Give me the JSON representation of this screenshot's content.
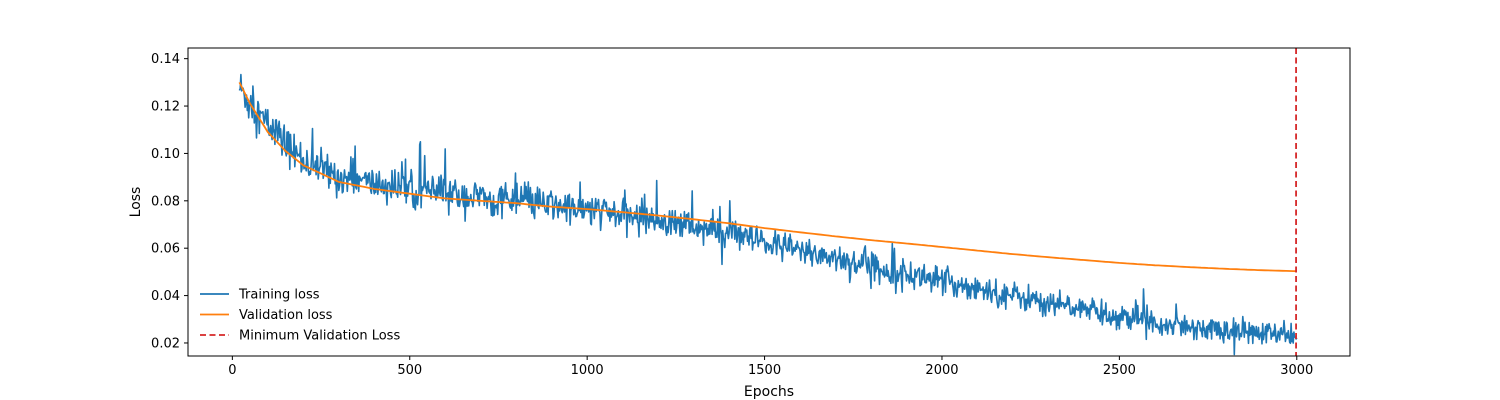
{
  "chart_data": {
    "type": "line",
    "title": "",
    "xlabel": "Epochs",
    "ylabel": "Loss",
    "xlim": [
      -125,
      3150
    ],
    "ylim": [
      0.0145,
      0.1445
    ],
    "xticks": [
      0,
      500,
      1000,
      1500,
      2000,
      2500,
      3000
    ],
    "xtick_labels": [
      "0",
      "500",
      "1000",
      "1500",
      "2000",
      "2500",
      "3000"
    ],
    "yticks": [
      0.02,
      0.04,
      0.06,
      0.08,
      0.1,
      0.12,
      0.14
    ],
    "ytick_labels": [
      "0.02",
      "0.04",
      "0.06",
      "0.08",
      "0.10",
      "0.12",
      "0.14"
    ],
    "grid": false,
    "legend_position": "lower-left",
    "series": [
      {
        "name": "Training loss",
        "color": "#1f77b4",
        "style": "solid",
        "noise_amplitude": 0.006,
        "x": [
          20,
          50,
          100,
          150,
          200,
          300,
          400,
          500,
          600,
          700,
          800,
          900,
          1000,
          1100,
          1200,
          1300,
          1400,
          1500,
          1600,
          1700,
          1800,
          1900,
          2000,
          2100,
          2200,
          2300,
          2400,
          2500,
          2600,
          2700,
          2800,
          2900,
          3000
        ],
        "y": [
          0.128,
          0.121,
          0.112,
          0.104,
          0.097,
          0.09,
          0.087,
          0.085,
          0.083,
          0.081,
          0.08,
          0.078,
          0.076,
          0.074,
          0.072,
          0.069,
          0.066,
          0.062,
          0.059,
          0.056,
          0.052,
          0.049,
          0.046,
          0.043,
          0.04,
          0.037,
          0.034,
          0.031,
          0.029,
          0.027,
          0.025,
          0.024,
          0.023
        ]
      },
      {
        "name": "Validation loss",
        "color": "#ff7f0e",
        "style": "solid",
        "x": [
          20,
          50,
          100,
          150,
          200,
          300,
          400,
          500,
          600,
          700,
          800,
          900,
          1000,
          1100,
          1200,
          1300,
          1400,
          1500,
          1600,
          1700,
          1800,
          1900,
          2000,
          2100,
          2200,
          2300,
          2400,
          2500,
          2600,
          2700,
          2800,
          2900,
          3000
        ],
        "y": [
          0.13,
          0.121,
          0.109,
          0.101,
          0.095,
          0.088,
          0.085,
          0.083,
          0.081,
          0.08,
          0.079,
          0.0775,
          0.0765,
          0.0752,
          0.0738,
          0.0722,
          0.0705,
          0.0685,
          0.0667,
          0.065,
          0.0634,
          0.062,
          0.0605,
          0.059,
          0.0575,
          0.0562,
          0.055,
          0.0538,
          0.0528,
          0.052,
          0.0513,
          0.0507,
          0.0503
        ]
      }
    ],
    "vlines": [
      {
        "name": "Minimum Validation Loss",
        "x": 2998,
        "color": "#d62728",
        "style": "dashed"
      }
    ]
  }
}
